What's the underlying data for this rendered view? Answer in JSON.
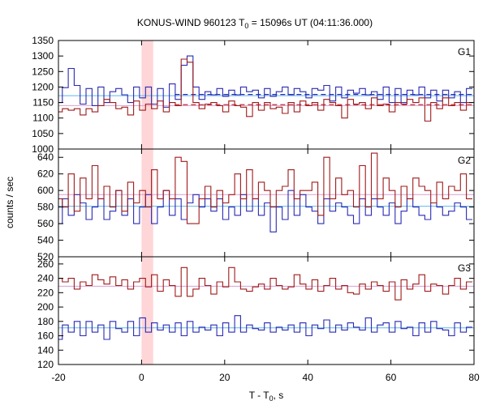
{
  "chart_data": {
    "type": "line",
    "title_main": "KONUS-WIND 960123 T",
    "title_sub": "0",
    "title_rest": " = 15096s UT (04:11:36.000)",
    "xlabel_main": "T - T",
    "xlabel_sub": "0",
    "xlabel_rest": ", s",
    "ylabel": "counts / sec",
    "xlim": [
      -20,
      80
    ],
    "xticks": [
      -20,
      0,
      20,
      40,
      60,
      80
    ],
    "highlight_interval": [
      0.0,
      2.8
    ],
    "colors": {
      "blue": "#2a2ab4",
      "red": "#a01a1a",
      "cyan": "#5fb8e8",
      "pink": "#d8a0d0",
      "dash_blue": "#2a2ab4",
      "dash_red": "#c0303a",
      "highlight": "#ffd6d8"
    },
    "panels": [
      {
        "label": "G1",
        "ylim": [
          1000,
          1350
        ],
        "yticks": [
          1000,
          1050,
          1100,
          1150,
          1200,
          1250,
          1300,
          1350
        ],
        "bin_start": -20.5,
        "bin_width": 1.43,
        "series": [
          {
            "color_key": "blue",
            "values": [
              1150,
              1198,
              1260,
              1205,
              1145,
              1195,
              1140,
              1200,
              1150,
              1185,
              1195,
              1175,
              1150,
              1200,
              1165,
              1200,
              1145,
              1195,
              1135,
              1210,
              1160,
              1270,
              1300,
              1200,
              1160,
              1185,
              1175,
              1195,
              1170,
              1190,
              1175,
              1200,
              1185,
              1190,
              1165,
              1195,
              1170,
              1185,
              1200,
              1175,
              1195,
              1185,
              1165,
              1195,
              1190,
              1205,
              1155,
              1200,
              1165,
              1190,
              1180,
              1195,
              1175,
              1185,
              1160,
              1200,
              1150,
              1195,
              1150,
              1190,
              1175,
              1200,
              1165,
              1190,
              1155,
              1190,
              1165,
              1185,
              1150,
              1195
            ]
          },
          {
            "color_key": "red",
            "values": [
              1120,
              1130,
              1125,
              1130,
              1110,
              1130,
              1120,
              1140,
              1160,
              1150,
              1130,
              1135,
              1110,
              1155,
              1125,
              1145,
              1130,
              1155,
              1120,
              1150,
              1140,
              1290,
              1280,
              1150,
              1130,
              1145,
              1150,
              1140,
              1120,
              1155,
              1140,
              1135,
              1105,
              1150,
              1125,
              1150,
              1130,
              1135,
              1115,
              1150,
              1120,
              1155,
              1140,
              1150,
              1125,
              1160,
              1150,
              1140,
              1100,
              1160,
              1145,
              1150,
              1130,
              1165,
              1140,
              1145,
              1120,
              1150,
              1145,
              1160,
              1150,
              1165,
              1090,
              1150,
              1130,
              1165,
              1140,
              1150,
              1125,
              1150
            ]
          }
        ],
        "flat_lines": [
          {
            "color_key": "cyan",
            "value": 1172,
            "dashed": false,
            "from": -20,
            "to": 80
          },
          {
            "color_key": "pink",
            "value": 1140,
            "dashed": false,
            "from": -20,
            "to": 80
          },
          {
            "color_key": "dash_blue",
            "value": 1176,
            "dashed": true,
            "from": 8,
            "to": 80
          },
          {
            "color_key": "dash_red",
            "value": 1143,
            "dashed": true,
            "from": 8,
            "to": 80
          }
        ]
      },
      {
        "label": "G2",
        "ylim": [
          520,
          650
        ],
        "yticks": [
          520,
          540,
          560,
          580,
          600,
          620,
          640
        ],
        "bin_start": -20.5,
        "bin_width": 1.43,
        "series": [
          {
            "color_key": "blue",
            "values": [
              560,
              590,
              570,
              595,
              585,
              565,
              580,
              590,
              565,
              575,
              600,
              570,
              590,
              560,
              580,
              595,
              560,
              580,
              600,
              570,
              590,
              565,
              585,
              595,
              580,
              590,
              575,
              590,
              565,
              580,
              570,
              595,
              575,
              590,
              570,
              585,
              550,
              580,
              565,
              600,
              570,
              595,
              580,
              575,
              560,
              590,
              575,
              585,
              580,
              570,
              560,
              590,
              570,
              590,
              580,
              570,
              585,
              560,
              575,
              590,
              580,
              570,
              565,
              585,
              580,
              570,
              575,
              585,
              580,
              565
            ]
          },
          {
            "color_key": "red",
            "values": [
              590,
              580,
              620,
              575,
              615,
              590,
              630,
              590,
              605,
              580,
              600,
              575,
              610,
              585,
              600,
              580,
              625,
              590,
              600,
              590,
              640,
              635,
              560,
              560,
              590,
              605,
              580,
              600,
              585,
              595,
              620,
              590,
              625,
              590,
              610,
              600,
              580,
              600,
              605,
              625,
              590,
              600,
              600,
              610,
              570,
              640,
              590,
              615,
              595,
              600,
              580,
              630,
              580,
              645,
              590,
              615,
              600,
              580,
              605,
              590,
              615,
              605,
              600,
              585,
              610,
              590,
              605,
              600,
              620,
              590
            ]
          }
        ],
        "flat_lines": [
          {
            "color_key": "cyan",
            "value": 581,
            "dashed": false,
            "from": -20,
            "to": 80
          },
          {
            "color_key": "pink",
            "value": 595,
            "dashed": false,
            "from": -20,
            "to": 80
          }
        ]
      },
      {
        "label": "G3",
        "ylim": [
          120,
          270
        ],
        "yticks": [
          120,
          140,
          160,
          180,
          200,
          220,
          240,
          260
        ],
        "bin_start": -20.5,
        "bin_width": 1.43,
        "series": [
          {
            "color_key": "blue",
            "values": [
              155,
              175,
              165,
              180,
              160,
              180,
              165,
              175,
              155,
              180,
              170,
              165,
              180,
              160,
              185,
              165,
              178,
              168,
              175,
              165,
              178,
              160,
              180,
              165,
              172,
              168,
              175,
              160,
              178,
              165,
              188,
              165,
              175,
              170,
              168,
              178,
              165,
              172,
              168,
              175,
              165,
              178,
              160,
              175,
              170,
              182,
              165,
              175,
              168,
              178,
              172,
              168,
              185,
              165,
              175,
              178,
              165,
              180,
              170,
              172,
              160,
              178,
              165,
              180,
              170,
              168,
              160,
              178,
              165,
              172
            ]
          },
          {
            "color_key": "red",
            "values": [
              240,
              235,
              240,
              225,
              235,
              230,
              245,
              238,
              232,
              242,
              230,
              238,
              225,
              235,
              240,
              228,
              245,
              222,
              238,
              230,
              215,
              255,
              215,
              225,
              240,
              230,
              218,
              235,
              228,
              255,
              235,
              225,
              222,
              228,
              232,
              225,
              240,
              230,
              225,
              228,
              245,
              232,
              225,
              238,
              222,
              230,
              240,
              225,
              230,
              220,
              218,
              232,
              225,
              235,
              230,
              222,
              235,
              210,
              238,
              225,
              232,
              245,
              222,
              232,
              230,
              218,
              230,
              240,
              225,
              235
            ]
          }
        ],
        "flat_lines": [
          {
            "color_key": "cyan",
            "value": 171,
            "dashed": false,
            "from": -20,
            "to": 80
          },
          {
            "color_key": "pink",
            "value": 229,
            "dashed": false,
            "from": -20,
            "to": 80
          }
        ]
      }
    ]
  }
}
